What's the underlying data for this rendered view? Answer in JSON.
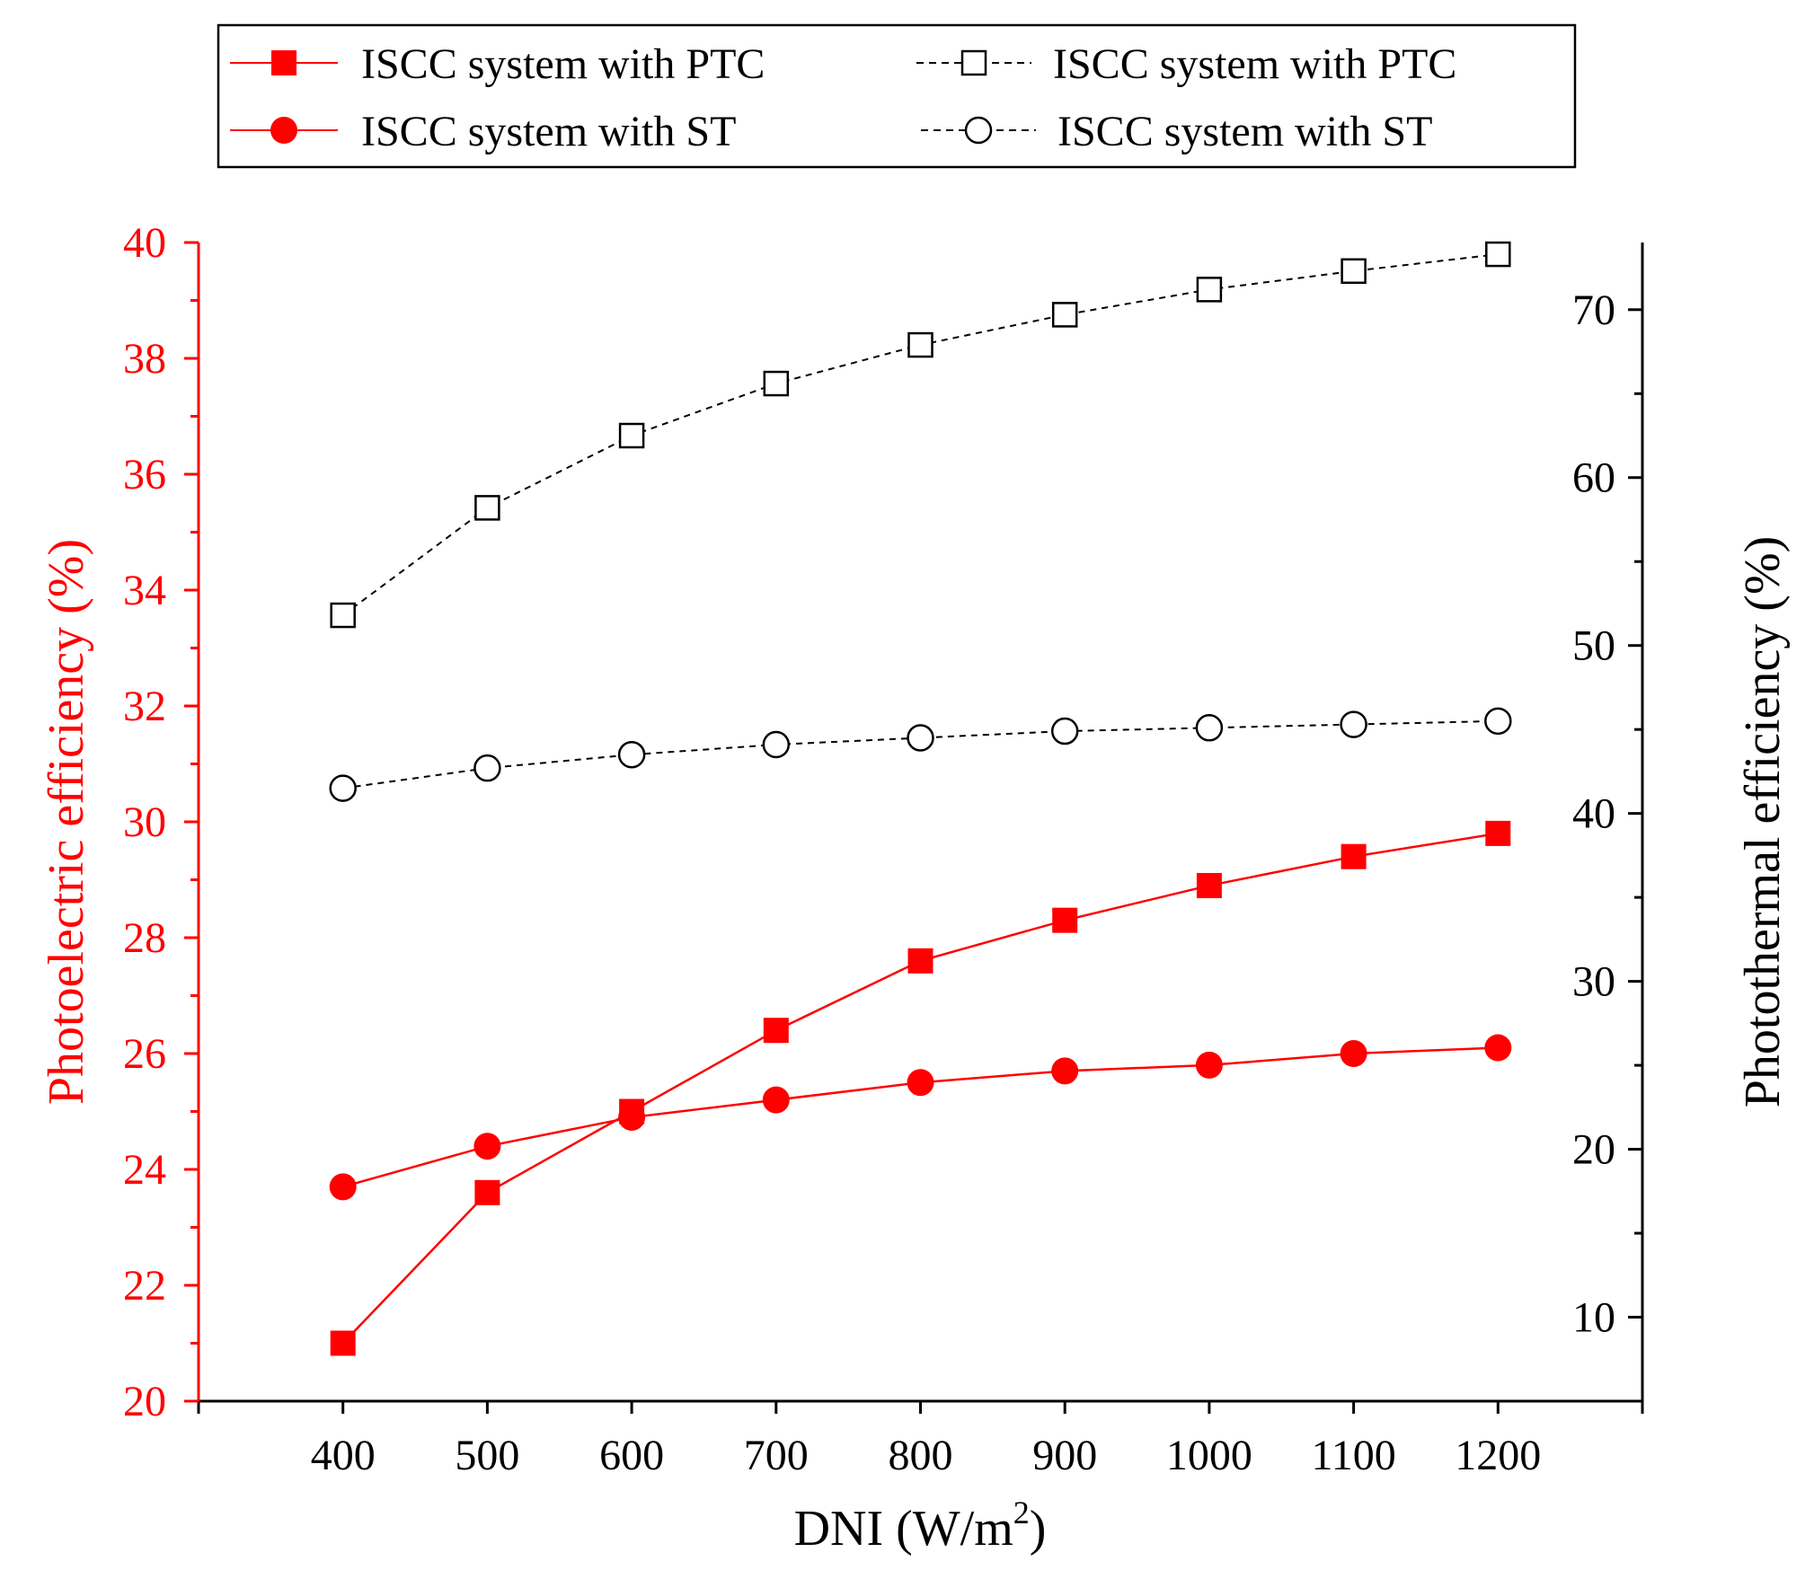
{
  "chart_data": {
    "type": "line",
    "xlabel": "DNI (W/m",
    "xlabel_sup": "2",
    "xlabel_end": ")",
    "ylabel_left": "Photoelectric efficiency (%)",
    "ylabel_right": "Photothermal efficiency (%)",
    "x_range": [
      300,
      1300
    ],
    "y_left_range": [
      20,
      40
    ],
    "y_right_range": [
      5,
      74
    ],
    "x_ticks": [
      400,
      500,
      600,
      700,
      800,
      900,
      1000,
      1100,
      1200
    ],
    "y_left_ticks": [
      20,
      22,
      24,
      26,
      28,
      30,
      32,
      34,
      36,
      38,
      40
    ],
    "y_right_ticks": [
      10,
      20,
      30,
      40,
      50,
      60,
      70
    ],
    "x": [
      400,
      500,
      600,
      700,
      800,
      900,
      1000,
      1100,
      1200
    ],
    "series": [
      {
        "name": "ISCC system with PTC",
        "axis": "left",
        "marker": "square",
        "filled": true,
        "line": "solid",
        "color": "#ff0000",
        "values": [
          21.0,
          23.6,
          25.0,
          26.4,
          27.6,
          28.3,
          28.9,
          29.4,
          29.8
        ]
      },
      {
        "name": "ISCC system with ST",
        "axis": "left",
        "marker": "circle",
        "filled": true,
        "line": "solid",
        "color": "#ff0000",
        "values": [
          23.7,
          24.4,
          24.9,
          25.2,
          25.5,
          25.7,
          25.8,
          26.0,
          26.1
        ]
      },
      {
        "name": "ISCC system with PTC",
        "axis": "right",
        "marker": "square",
        "filled": false,
        "line": "dashed",
        "color": "#000000",
        "values": [
          51.8,
          58.2,
          62.5,
          65.6,
          67.9,
          69.7,
          71.2,
          72.3,
          73.3
        ]
      },
      {
        "name": "ISCC system with ST",
        "axis": "right",
        "marker": "circle",
        "filled": false,
        "line": "dashed",
        "color": "#000000",
        "values": [
          41.5,
          42.7,
          43.5,
          44.1,
          44.5,
          44.9,
          45.1,
          45.3,
          45.5
        ]
      }
    ],
    "legend": {
      "placement": "top-center",
      "entries": [
        "ISCC system with PTC",
        "ISCC system with ST",
        "ISCC system with PTC",
        "ISCC system with ST"
      ]
    },
    "colors": {
      "left_axis": "#ff0000",
      "right_axis": "#000000"
    }
  }
}
